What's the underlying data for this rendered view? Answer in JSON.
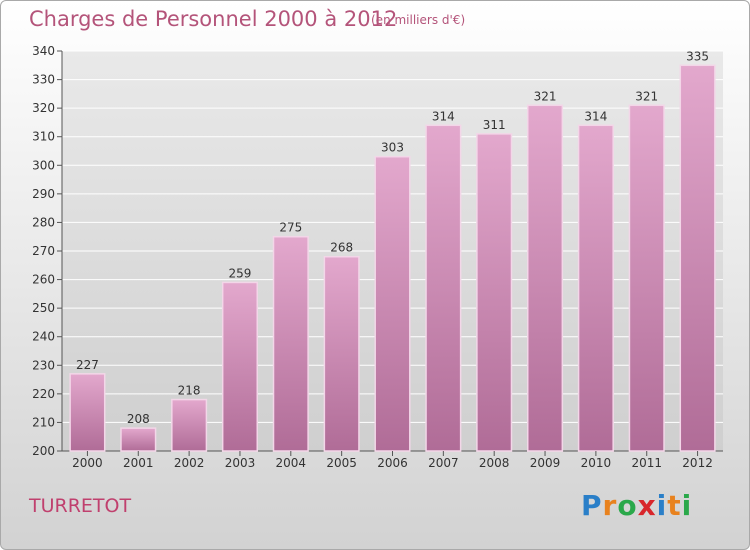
{
  "header": {
    "title": "Charges de Personnel 2000 à 2012",
    "subtitle": "(en milliers d'€)"
  },
  "footer": {
    "place": "TURRETOT",
    "brand_letters": [
      "P",
      "r",
      "o",
      "x",
      "i",
      "t",
      "i"
    ],
    "brand_colors": [
      "#2a7fc8",
      "#e8821e",
      "#2aa84a",
      "#d8262b",
      "#2a7fc8",
      "#e8821e",
      "#2aa84a"
    ]
  },
  "colors": {
    "bar_top": "#e3a8cd",
    "bar_bottom": "#b06c97",
    "bar_edge": "#f3d6e8",
    "axis": "#555555",
    "grid": "#ffffff"
  },
  "chart_data": {
    "type": "bar",
    "title": "Charges de Personnel 2000 à 2012",
    "subtitle": "(en milliers d'€)",
    "categories": [
      "2000",
      "2001",
      "2002",
      "2003",
      "2004",
      "2005",
      "2006",
      "2007",
      "2008",
      "2009",
      "2010",
      "2011",
      "2012"
    ],
    "values": [
      227,
      208,
      218,
      259,
      275,
      268,
      303,
      314,
      311,
      321,
      314,
      321,
      335
    ],
    "ylim": [
      200,
      340
    ],
    "ytick_step": 10,
    "grid": true,
    "data_labels": true
  }
}
